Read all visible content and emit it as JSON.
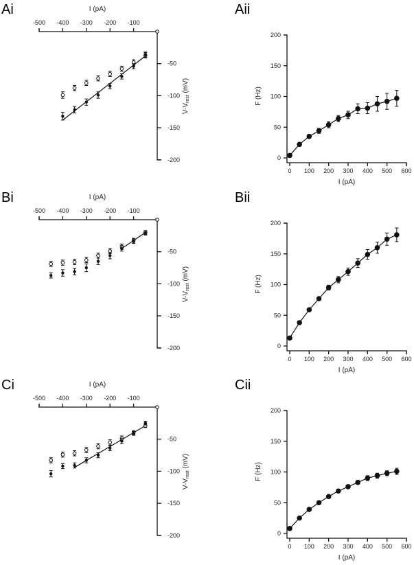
{
  "chart_data": [
    {
      "id": "Ai",
      "type": "scatter",
      "panel_label": "Ai",
      "xlabel": "I (pA)",
      "ylabel": {
        "main": "V-V",
        "sub": "rest",
        "unit": " (mV)"
      },
      "xlim": [
        -500,
        0
      ],
      "ylim": [
        -200,
        0
      ],
      "xticks": [
        -500,
        -400,
        -300,
        -200,
        -100
      ],
      "yticks": [
        -50,
        -100,
        -150,
        -200
      ],
      "x": [
        -400,
        -350,
        -300,
        -250,
        -200,
        -150,
        -100,
        -50
      ],
      "series": [
        {
          "name": "open",
          "marker": "open-circle",
          "values": [
            -99,
            -88,
            -80,
            -73,
            -66,
            -58,
            -48,
            -37
          ],
          "errors": [
            5,
            4,
            4,
            4,
            4,
            4,
            4,
            4
          ]
        },
        {
          "name": "filled",
          "marker": "filled-circle",
          "values": [
            -132,
            -122,
            -110,
            -99,
            -85,
            -70,
            -54,
            -36
          ],
          "errors": [
            6,
            5,
            5,
            5,
            4,
            4,
            4,
            4
          ]
        }
      ],
      "fit": {
        "x": [
          -400,
          -50
        ],
        "y": [
          -138,
          -38
        ]
      }
    },
    {
      "id": "Aii",
      "type": "line",
      "panel_label": "Aii",
      "xlabel": "I (pA)",
      "ylabel": "F (Hz)",
      "xlim": [
        0,
        600
      ],
      "ylim": [
        0,
        200
      ],
      "xticks": [
        0,
        100,
        200,
        300,
        400,
        500,
        600
      ],
      "yticks": [
        0,
        50,
        100,
        150,
        200
      ],
      "x": [
        0,
        50,
        100,
        150,
        200,
        250,
        300,
        350,
        400,
        450,
        500,
        550
      ],
      "series": [
        {
          "name": "F",
          "values": [
            4,
            22,
            35,
            44,
            54,
            64,
            70,
            80,
            81,
            88,
            92,
            97
          ],
          "errors": [
            1,
            2,
            3,
            4,
            5,
            5,
            6,
            8,
            9,
            12,
            13,
            13
          ]
        }
      ]
    },
    {
      "id": "Bi",
      "type": "scatter",
      "panel_label": "Bi",
      "xlabel": "I (pA)",
      "ylabel": {
        "main": "V-V",
        "sub": "rest",
        "unit": " (mV)"
      },
      "xlim": [
        -500,
        0
      ],
      "ylim": [
        -200,
        0
      ],
      "xticks": [
        -500,
        -400,
        -300,
        -200,
        -100
      ],
      "yticks": [
        -50,
        -100,
        -150,
        -200
      ],
      "x": [
        -450,
        -400,
        -350,
        -300,
        -250,
        -200,
        -150,
        -100,
        -50
      ],
      "series": [
        {
          "name": "open",
          "marker": "open-circle",
          "values": [
            -69,
            -67,
            -66,
            -63,
            -56,
            -49,
            -42,
            -32,
            -20
          ],
          "errors": [
            4,
            4,
            4,
            4,
            4,
            4,
            4,
            3,
            3
          ]
        },
        {
          "name": "filled",
          "marker": "filled-circle",
          "values": [
            -87,
            -83,
            -81,
            -75,
            -65,
            -56,
            -45,
            -34,
            -21
          ],
          "errors": [
            4,
            5,
            5,
            6,
            5,
            5,
            4,
            3,
            3
          ]
        }
      ],
      "fit": {
        "x": [
          -150,
          -50
        ],
        "y": [
          -45,
          -20
        ]
      }
    },
    {
      "id": "Bii",
      "type": "line",
      "panel_label": "Bii",
      "xlabel": "I (pA)",
      "ylabel": "F (Hz)",
      "xlim": [
        0,
        600
      ],
      "ylim": [
        0,
        200
      ],
      "xticks": [
        0,
        100,
        200,
        300,
        400,
        500,
        600
      ],
      "yticks": [
        0,
        50,
        100,
        150,
        200
      ],
      "x": [
        0,
        50,
        100,
        150,
        200,
        250,
        300,
        350,
        400,
        450,
        500,
        550
      ],
      "series": [
        {
          "name": "F",
          "values": [
            13,
            38,
            59,
            77,
            95,
            108,
            121,
            135,
            149,
            160,
            174,
            181
          ],
          "errors": [
            1,
            1,
            2,
            2,
            4,
            5,
            6,
            7,
            8,
            9,
            10,
            11
          ]
        }
      ]
    },
    {
      "id": "Ci",
      "type": "scatter",
      "panel_label": "Ci",
      "xlabel": "I (pA)",
      "ylabel": {
        "main": "V-V",
        "sub": "rest",
        "unit": " (mV)"
      },
      "xlim": [
        -500,
        0
      ],
      "ylim": [
        -200,
        0
      ],
      "xticks": [
        -500,
        -400,
        -300,
        -200,
        -100
      ],
      "yticks": [
        -50,
        -100,
        -150,
        -200
      ],
      "x": [
        -450,
        -400,
        -350,
        -300,
        -250,
        -200,
        -150,
        -100,
        -50
      ],
      "series": [
        {
          "name": "open",
          "marker": "open-circle",
          "values": [
            -83,
            -74,
            -72,
            -67,
            -61,
            -55,
            -49,
            -40,
            -29
          ],
          "errors": [
            4,
            4,
            4,
            4,
            4,
            4,
            4,
            3,
            3
          ]
        },
        {
          "name": "filled",
          "marker": "filled-circle",
          "values": [
            -104,
            -92,
            -91,
            -83,
            -75,
            -64,
            -53,
            -41,
            -25
          ],
          "errors": [
            5,
            4,
            4,
            4,
            4,
            4,
            4,
            3,
            3
          ]
        }
      ],
      "fit": {
        "x": [
          -350,
          -50
        ],
        "y": [
          -94,
          -29
        ]
      }
    },
    {
      "id": "Cii",
      "type": "line",
      "panel_label": "Cii",
      "xlabel": "I (pA)",
      "ylabel": "F (Hz)",
      "xlim": [
        0,
        600
      ],
      "ylim": [
        0,
        200
      ],
      "xticks": [
        0,
        100,
        200,
        300,
        400,
        500,
        600
      ],
      "yticks": [
        0,
        50,
        100,
        150,
        200
      ],
      "x": [
        0,
        50,
        100,
        150,
        200,
        250,
        300,
        350,
        400,
        450,
        500,
        550
      ],
      "series": [
        {
          "name": "F",
          "values": [
            8,
            25,
            39,
            50,
            60,
            69,
            76,
            83,
            90,
            94,
            98,
            101
          ],
          "errors": [
            1,
            1,
            1,
            1,
            2,
            2,
            3,
            3,
            4,
            4,
            4,
            5
          ]
        }
      ]
    }
  ]
}
